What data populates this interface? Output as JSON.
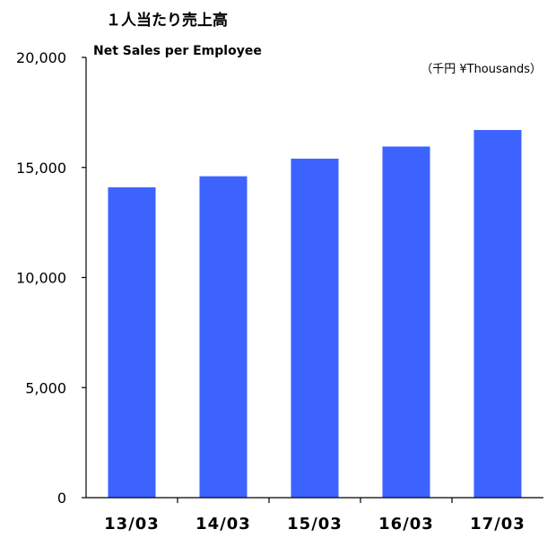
{
  "chart_data": {
    "type": "bar",
    "title": "１人当たり売上高",
    "subtitle": "Net Sales per Employee",
    "unit": "（千円 ¥Thousands）",
    "categories": [
      "13/03",
      "14/03",
      "15/03",
      "16/03",
      "17/03"
    ],
    "values": [
      14100,
      14600,
      15400,
      15950,
      16700
    ],
    "yticks": [
      "0",
      "5,000",
      "10,000",
      "15,000",
      "20,000"
    ],
    "ylim": [
      0,
      20000
    ],
    "grid": false,
    "colors": {
      "bar": "#3d63ff",
      "axis": "#000000"
    }
  }
}
